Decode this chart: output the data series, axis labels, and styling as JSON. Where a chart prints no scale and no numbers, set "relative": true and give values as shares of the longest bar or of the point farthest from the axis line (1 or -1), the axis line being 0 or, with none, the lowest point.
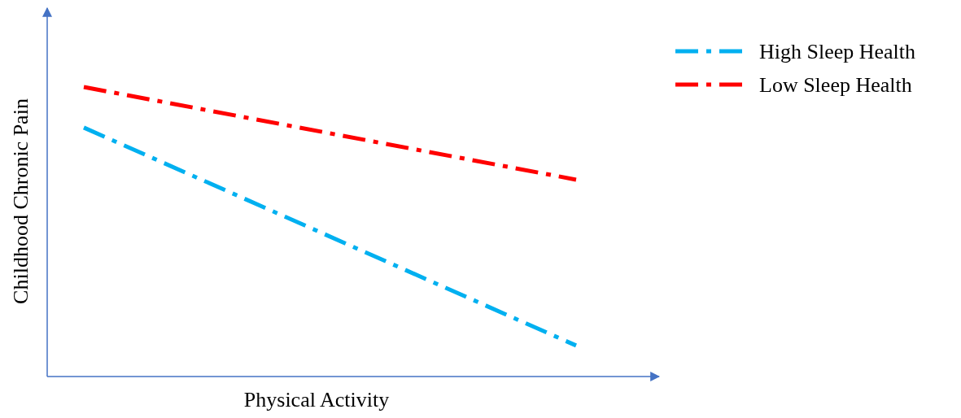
{
  "chart_data": {
    "type": "line",
    "relative": true,
    "xlabel": "Physical Activity",
    "ylabel": "Childhood Chronic Pain",
    "categories": [
      null,
      null
    ],
    "legend": "top right",
    "line_style": "dashed",
    "series": [
      {
        "name": "High Sleep Health",
        "color": "#00b0f0",
        "values": [
          0.86,
          0.107
        ]
      },
      {
        "name": "Low Sleep Health",
        "color": "#ff0000",
        "values": [
          1,
          0.68
        ]
      }
    ]
  }
}
